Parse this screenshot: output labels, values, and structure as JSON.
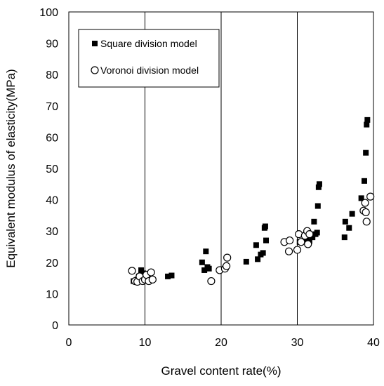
{
  "chart_data": {
    "type": "scatter",
    "xlabel": "Gravel content rate(%)",
    "ylabel": "Equivalent modulus of elasticity(MPa)",
    "xlim": [
      0,
      40
    ],
    "ylim": [
      0,
      100
    ],
    "xticks": [
      "0",
      "10",
      "20",
      "30",
      "40"
    ],
    "yticks": [
      "0",
      "10",
      "20",
      "30",
      "40",
      "50",
      "60",
      "70",
      "80",
      "90",
      "100"
    ],
    "grid": "vertical",
    "legend_position": "top-left",
    "series": [
      {
        "name": "Square division model",
        "marker": "filled-square",
        "color": "#000000",
        "points": [
          [
            8.5,
            14
          ],
          [
            9.0,
            14.5
          ],
          [
            9.2,
            15.5
          ],
          [
            9.5,
            17.5
          ],
          [
            9.8,
            16.5
          ],
          [
            10.0,
            16
          ],
          [
            10.3,
            14.5
          ],
          [
            13.0,
            15.5
          ],
          [
            13.5,
            15.8
          ],
          [
            17.5,
            20
          ],
          [
            17.8,
            17.5
          ],
          [
            18.0,
            23.5
          ],
          [
            18.2,
            18.5
          ],
          [
            18.4,
            18
          ],
          [
            23.3,
            20.2
          ],
          [
            24.6,
            25.5
          ],
          [
            24.8,
            21
          ],
          [
            25.2,
            22.5
          ],
          [
            25.5,
            23
          ],
          [
            25.7,
            31
          ],
          [
            25.8,
            31.5
          ],
          [
            25.9,
            27
          ],
          [
            30.3,
            26.5
          ],
          [
            31.2,
            27.5
          ],
          [
            31.6,
            26.8
          ],
          [
            32.0,
            28
          ],
          [
            32.2,
            33
          ],
          [
            32.4,
            29
          ],
          [
            32.6,
            29.5
          ],
          [
            32.7,
            38
          ],
          [
            32.8,
            44
          ],
          [
            32.9,
            45
          ],
          [
            36.2,
            28
          ],
          [
            36.3,
            33
          ],
          [
            36.8,
            31
          ],
          [
            37.2,
            35.5
          ],
          [
            38.4,
            40.5
          ],
          [
            38.8,
            46
          ],
          [
            39.0,
            55
          ],
          [
            39.1,
            64
          ],
          [
            39.2,
            65.5
          ]
        ]
      },
      {
        "name": "Voronoi division model",
        "marker": "open-circle",
        "color": "#000000",
        "points": [
          [
            8.3,
            17.3
          ],
          [
            8.7,
            14
          ],
          [
            9.0,
            13.8
          ],
          [
            9.3,
            15.5
          ],
          [
            9.7,
            14
          ],
          [
            10.0,
            14.5
          ],
          [
            10.2,
            16
          ],
          [
            10.5,
            14
          ],
          [
            10.8,
            16.8
          ],
          [
            11.0,
            14.5
          ],
          [
            18.7,
            14
          ],
          [
            19.8,
            17.5
          ],
          [
            20.5,
            18
          ],
          [
            20.7,
            18.8
          ],
          [
            20.8,
            21.5
          ],
          [
            28.3,
            26.5
          ],
          [
            28.9,
            23.5
          ],
          [
            29.0,
            27
          ],
          [
            30.0,
            24
          ],
          [
            30.2,
            29
          ],
          [
            30.5,
            26.5
          ],
          [
            31.0,
            28.5
          ],
          [
            31.3,
            30
          ],
          [
            31.4,
            25.8
          ],
          [
            31.6,
            29
          ],
          [
            38.7,
            36.5
          ],
          [
            38.9,
            39
          ],
          [
            39.0,
            36
          ],
          [
            39.1,
            33
          ],
          [
            39.6,
            41
          ]
        ]
      }
    ]
  }
}
